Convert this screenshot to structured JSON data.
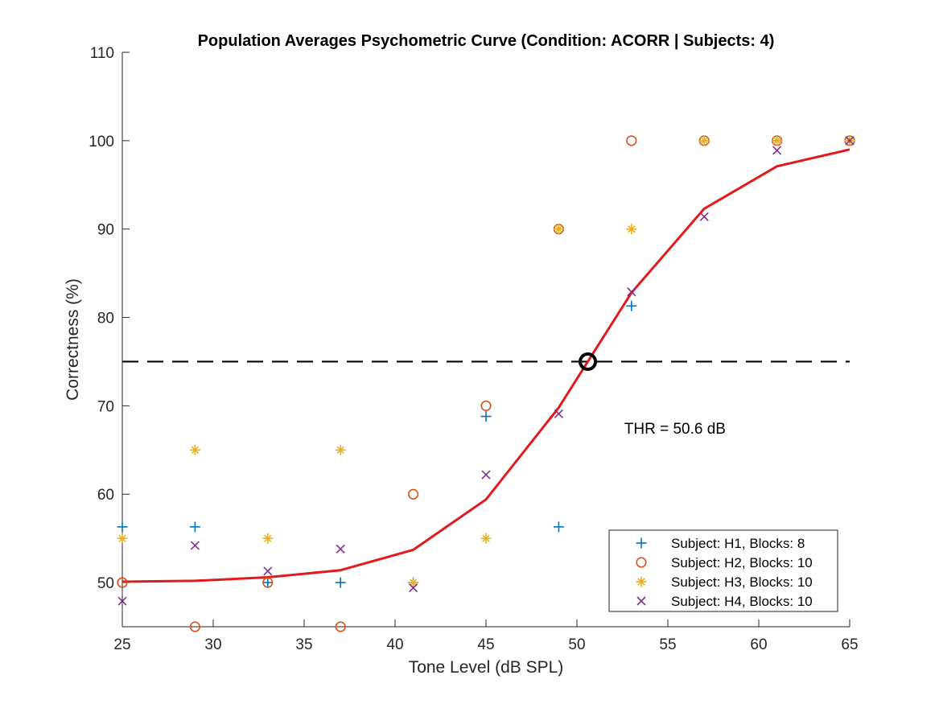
{
  "chart_data": {
    "type": "scatter",
    "title": "Population Averages Psychometric Curve (Condition: ACORR | Subjects: 4)",
    "xlabel": "Tone Level (dB SPL)",
    "ylabel": "Correctness (%)",
    "xlim": [
      25,
      65
    ],
    "ylim": [
      45,
      110
    ],
    "xticks": [
      25,
      30,
      35,
      40,
      45,
      50,
      55,
      60,
      65
    ],
    "yticks": [
      50,
      60,
      70,
      80,
      90,
      100,
      110
    ],
    "grid": false,
    "legend_position": "bottom-right",
    "series": [
      {
        "name": "Subject: H1, Blocks: 8",
        "marker": "plus",
        "color": "#0072BD",
        "x": [
          25,
          29,
          33,
          37,
          41,
          45,
          49,
          53,
          57,
          61,
          65
        ],
        "y": [
          56.3,
          56.3,
          50,
          50,
          50,
          68.8,
          56.3,
          81.3,
          100,
          100,
          100
        ]
      },
      {
        "name": "Subject: H2, Blocks: 10",
        "marker": "circle",
        "color": "#D95319",
        "x": [
          25,
          29,
          33,
          37,
          41,
          45,
          49,
          53,
          57,
          61,
          65
        ],
        "y": [
          50,
          45,
          50,
          45,
          60,
          70,
          90,
          100,
          100,
          100,
          100
        ]
      },
      {
        "name": "Subject: H3, Blocks: 10",
        "marker": "asterisk",
        "color": "#EDB120",
        "x": [
          25,
          29,
          33,
          37,
          41,
          45,
          49,
          53,
          57,
          61,
          65
        ],
        "y": [
          55,
          65,
          55,
          65,
          50,
          55,
          90,
          90,
          100,
          100,
          100
        ]
      },
      {
        "name": "Subject: H4, Blocks: 10",
        "marker": "x",
        "color": "#7E2F8E",
        "x": [
          25,
          29,
          33,
          37,
          41,
          45,
          49,
          53,
          57,
          61,
          65
        ],
        "y": [
          47.9,
          54.2,
          51.3,
          53.8,
          49.4,
          62.2,
          69.1,
          82.9,
          91.4,
          98.9,
          100
        ]
      }
    ],
    "fit_curve": {
      "color": "#E31A1C",
      "x": [
        25,
        29,
        33,
        37,
        41,
        45,
        49,
        53,
        57,
        61,
        65
      ],
      "y": [
        50.1,
        50.2,
        50.6,
        51.4,
        53.7,
        59.4,
        69.8,
        82.8,
        92.3,
        97.1,
        99.0
      ]
    },
    "threshold": {
      "level": 75,
      "x": 50.6,
      "label": "THR = 50.6 dB",
      "label_x": 52.6,
      "label_y": 67.5
    }
  }
}
